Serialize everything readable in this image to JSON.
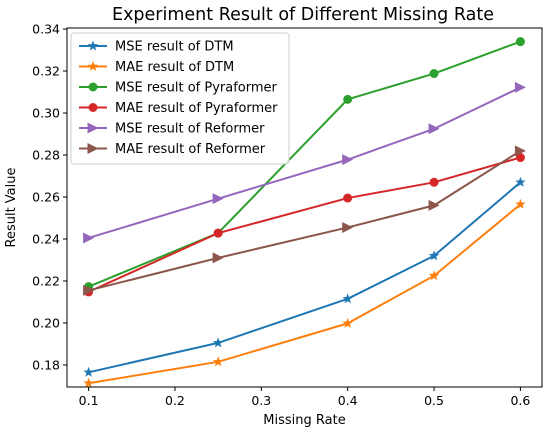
{
  "chart_data": {
    "type": "line",
    "title": "Experiment Result of Different Missing Rate",
    "xlabel": "Missing Rate",
    "ylabel": "Result Value",
    "xlim": [
      0.075,
      0.625
    ],
    "ylim": [
      0.1695,
      0.3405
    ],
    "x_ticks": [
      0.1,
      0.2,
      0.3,
      0.4,
      0.5,
      0.6
    ],
    "y_ticks": [
      0.18,
      0.2,
      0.22,
      0.24,
      0.26,
      0.28,
      0.3,
      0.32,
      0.34
    ],
    "grid": false,
    "legend_position": "upper-left",
    "series": [
      {
        "name": "MSE result of DTM",
        "color": "#1f77b4",
        "marker": "star",
        "x": [
          0.1,
          0.25,
          0.4,
          0.5,
          0.6
        ],
        "y": [
          0.1765,
          0.1905,
          0.2115,
          0.232,
          0.267
        ]
      },
      {
        "name": "MAE result of DTM",
        "color": "#ff7f0e",
        "marker": "star",
        "x": [
          0.1,
          0.25,
          0.4,
          0.5,
          0.6
        ],
        "y": [
          0.1713,
          0.1815,
          0.1998,
          0.2225,
          0.2565
        ]
      },
      {
        "name": "MSE result of Pyraformer",
        "color": "#2ca02c",
        "marker": "circle",
        "x": [
          0.1,
          0.25,
          0.4,
          0.5,
          0.6
        ],
        "y": [
          0.2173,
          0.2428,
          0.3065,
          0.3188,
          0.334
        ]
      },
      {
        "name": "MAE result of Pyraformer",
        "color": "#d62728",
        "marker": "circle",
        "x": [
          0.1,
          0.25,
          0.4,
          0.5,
          0.6
        ],
        "y": [
          0.2148,
          0.2428,
          0.2595,
          0.267,
          0.2788
        ]
      },
      {
        "name": "MSE result of Reformer",
        "color": "#9467bd",
        "marker": "triangle-right",
        "x": [
          0.1,
          0.25,
          0.4,
          0.5,
          0.6
        ],
        "y": [
          0.2405,
          0.2592,
          0.2778,
          0.2925,
          0.3122
        ]
      },
      {
        "name": "MAE result of Reformer",
        "color": "#8c564b",
        "marker": "triangle-right",
        "x": [
          0.1,
          0.25,
          0.4,
          0.5,
          0.6
        ],
        "y": [
          0.2155,
          0.231,
          0.2455,
          0.256,
          0.282
        ]
      }
    ]
  }
}
